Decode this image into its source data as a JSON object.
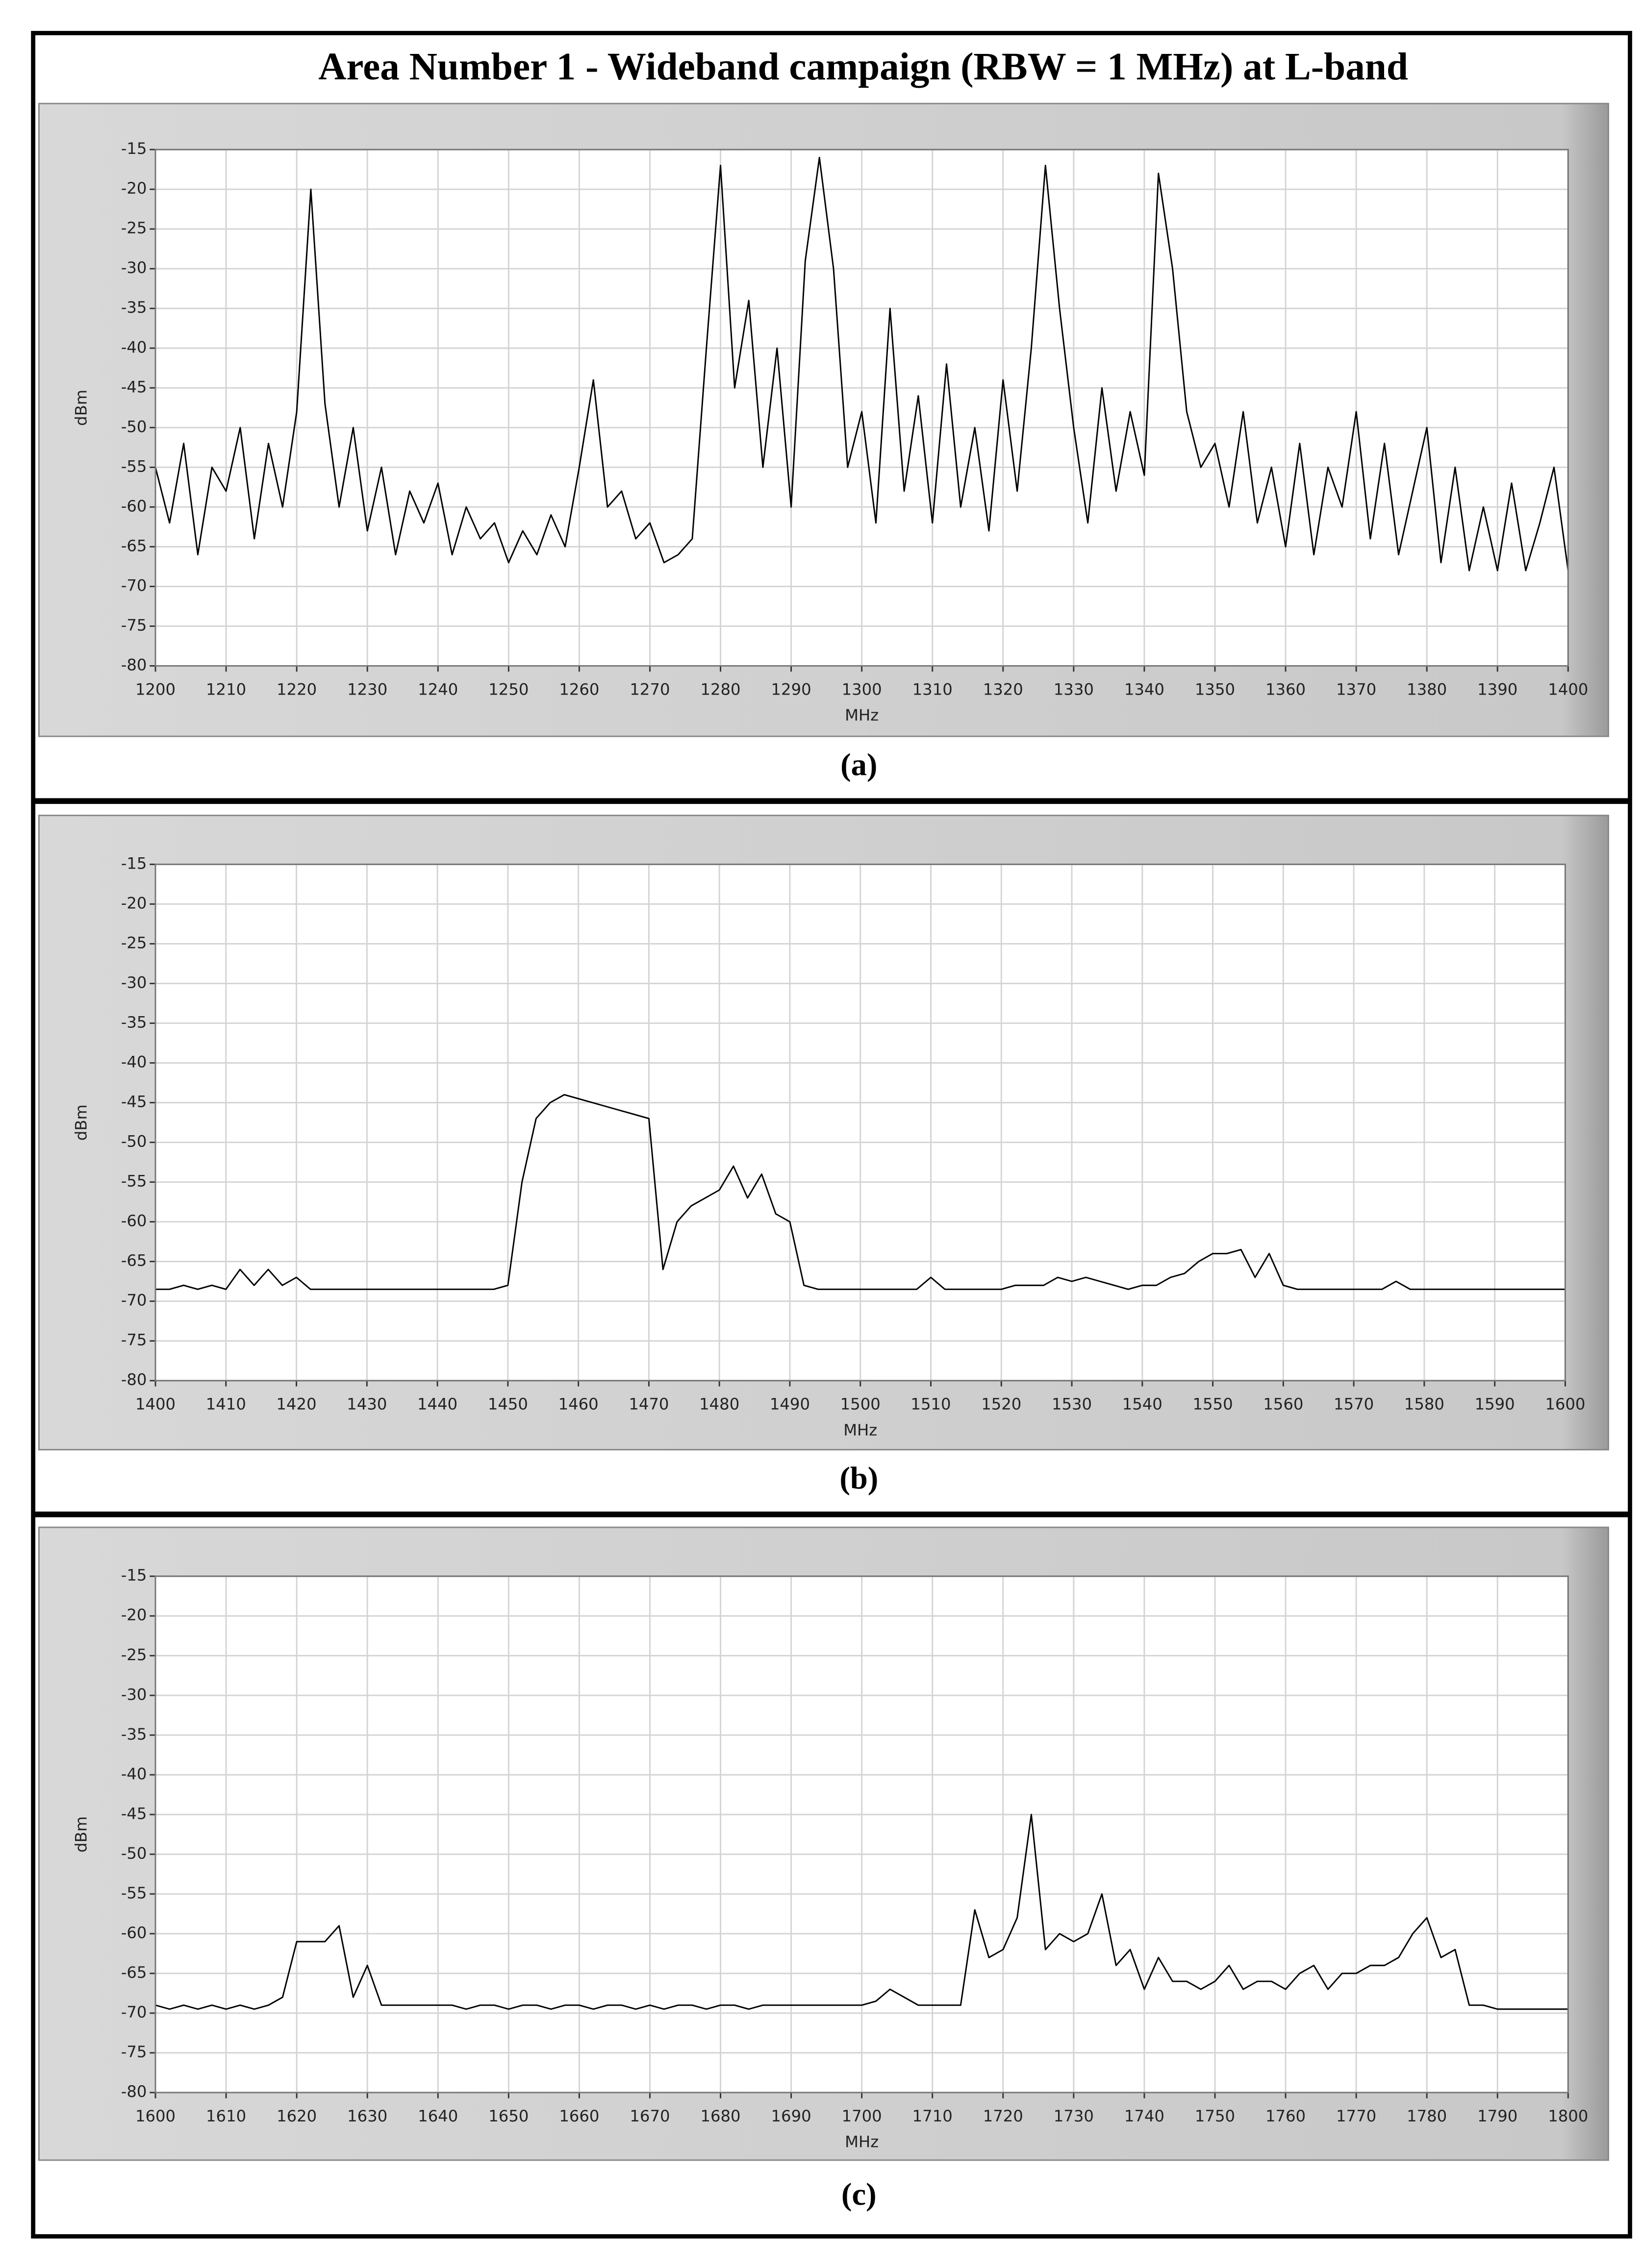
{
  "title": "Area Number 1 - Wideband campaign (RBW = 1 MHz) at  L-band",
  "chart_data": [
    {
      "type": "line",
      "caption": "(a)",
      "xlabel": "MHz",
      "ylabel": "dBm",
      "color": "#000000",
      "grid": true,
      "xlim": [
        1200,
        1400
      ],
      "ylim": [
        -80,
        -15
      ],
      "xticks": [
        1200,
        1210,
        1220,
        1230,
        1240,
        1250,
        1260,
        1270,
        1280,
        1290,
        1300,
        1310,
        1320,
        1330,
        1340,
        1350,
        1360,
        1370,
        1380,
        1390,
        1400
      ],
      "yticks": [
        -15,
        -20,
        -25,
        -30,
        -35,
        -40,
        -45,
        -50,
        -55,
        -60,
        -65,
        -70,
        -75,
        -80
      ],
      "x": [
        1200,
        1202,
        1204,
        1206,
        1208,
        1210,
        1212,
        1214,
        1216,
        1218,
        1220,
        1222,
        1224,
        1226,
        1228,
        1230,
        1232,
        1234,
        1236,
        1238,
        1240,
        1242,
        1244,
        1246,
        1248,
        1250,
        1252,
        1254,
        1256,
        1258,
        1260,
        1262,
        1264,
        1266,
        1268,
        1270,
        1272,
        1274,
        1276,
        1278,
        1280,
        1282,
        1284,
        1286,
        1288,
        1290,
        1292,
        1294,
        1296,
        1298,
        1300,
        1302,
        1304,
        1306,
        1308,
        1310,
        1312,
        1314,
        1316,
        1318,
        1320,
        1322,
        1324,
        1326,
        1328,
        1330,
        1332,
        1334,
        1336,
        1338,
        1340,
        1342,
        1344,
        1346,
        1348,
        1350,
        1352,
        1354,
        1356,
        1358,
        1360,
        1362,
        1364,
        1366,
        1368,
        1370,
        1372,
        1374,
        1376,
        1378,
        1380,
        1382,
        1384,
        1386,
        1388,
        1390,
        1392,
        1394,
        1396,
        1398,
        1400
      ],
      "values": [
        -55,
        -62,
        -52,
        -66,
        -55,
        -58,
        -50,
        -64,
        -52,
        -60,
        -48,
        -20,
        -47,
        -60,
        -50,
        -63,
        -55,
        -66,
        -58,
        -62,
        -57,
        -66,
        -60,
        -64,
        -62,
        -67,
        -63,
        -66,
        -61,
        -65,
        -55,
        -44,
        -60,
        -58,
        -64,
        -62,
        -67,
        -66,
        -64,
        -40,
        -17,
        -45,
        -34,
        -55,
        -40,
        -60,
        -29,
        -16,
        -30,
        -55,
        -48,
        -62,
        -35,
        -58,
        -46,
        -62,
        -42,
        -60,
        -50,
        -63,
        -44,
        -58,
        -40,
        -17,
        -35,
        -50,
        -62,
        -45,
        -58,
        -48,
        -56,
        -18,
        -30,
        -48,
        -55,
        -52,
        -60,
        -48,
        -62,
        -55,
        -65,
        -52,
        -66,
        -55,
        -60,
        -48,
        -64,
        -52,
        -66,
        -58,
        -50,
        -67,
        -55,
        -68,
        -60,
        -68,
        -57,
        -68,
        -62,
        -55,
        -68
      ]
    },
    {
      "type": "line",
      "caption": "(b)",
      "xlabel": "MHz",
      "ylabel": "dBm",
      "color": "#000000",
      "grid": true,
      "xlim": [
        1400,
        1600
      ],
      "ylim": [
        -80,
        -15
      ],
      "xticks": [
        1400,
        1410,
        1420,
        1430,
        1440,
        1450,
        1460,
        1470,
        1480,
        1490,
        1500,
        1510,
        1520,
        1530,
        1540,
        1550,
        1560,
        1570,
        1580,
        1590,
        1600
      ],
      "yticks": [
        -15,
        -20,
        -25,
        -30,
        -35,
        -40,
        -45,
        -50,
        -55,
        -60,
        -65,
        -70,
        -75,
        -80
      ],
      "x": [
        1400,
        1402,
        1404,
        1406,
        1408,
        1410,
        1412,
        1414,
        1416,
        1418,
        1420,
        1422,
        1424,
        1426,
        1428,
        1430,
        1432,
        1434,
        1436,
        1438,
        1440,
        1442,
        1444,
        1446,
        1448,
        1450,
        1452,
        1454,
        1456,
        1458,
        1460,
        1462,
        1464,
        1466,
        1468,
        1470,
        1472,
        1474,
        1476,
        1478,
        1480,
        1482,
        1484,
        1486,
        1488,
        1490,
        1492,
        1494,
        1496,
        1498,
        1500,
        1502,
        1504,
        1506,
        1508,
        1510,
        1512,
        1514,
        1516,
        1518,
        1520,
        1522,
        1524,
        1526,
        1528,
        1530,
        1532,
        1534,
        1536,
        1538,
        1540,
        1542,
        1544,
        1546,
        1548,
        1550,
        1552,
        1554,
        1556,
        1558,
        1560,
        1562,
        1564,
        1566,
        1568,
        1570,
        1572,
        1574,
        1576,
        1578,
        1580,
        1582,
        1584,
        1586,
        1588,
        1590,
        1592,
        1594,
        1596,
        1598,
        1600
      ],
      "values": [
        -68.5,
        -68.5,
        -68,
        -68.5,
        -68,
        -68.5,
        -66,
        -68,
        -66,
        -68,
        -67,
        -68.5,
        -68.5,
        -68.5,
        -68.5,
        -68.5,
        -68.5,
        -68.5,
        -68.5,
        -68.5,
        -68.5,
        -68.5,
        -68.5,
        -68.5,
        -68.5,
        -68,
        -55,
        -47,
        -45,
        -44,
        -44.5,
        -45,
        -45.5,
        -46,
        -46.5,
        -47,
        -66,
        -60,
        -58,
        -57,
        -56,
        -53,
        -57,
        -54,
        -59,
        -60,
        -68,
        -68.5,
        -68.5,
        -68.5,
        -68.5,
        -68.5,
        -68.5,
        -68.5,
        -68.5,
        -67,
        -68.5,
        -68.5,
        -68.5,
        -68.5,
        -68.5,
        -68,
        -68,
        -68,
        -67,
        -67.5,
        -67,
        -67.5,
        -68,
        -68.5,
        -68,
        -68,
        -67,
        -66.5,
        -65,
        -64,
        -64,
        -63.5,
        -67,
        -64,
        -68,
        -68.5,
        -68.5,
        -68.5,
        -68.5,
        -68.5,
        -68.5,
        -68.5,
        -67.5,
        -68.5,
        -68.5,
        -68.5,
        -68.5,
        -68.5,
        -68.5,
        -68.5,
        -68.5,
        -68.5,
        -68.5,
        -68.5,
        -68.5
      ]
    },
    {
      "type": "line",
      "caption": "(c)",
      "xlabel": "MHz",
      "ylabel": "dBm",
      "color": "#000000",
      "grid": true,
      "xlim": [
        1600,
        1800
      ],
      "ylim": [
        -80,
        -15
      ],
      "xticks": [
        1600,
        1610,
        1620,
        1630,
        1640,
        1650,
        1660,
        1670,
        1680,
        1690,
        1700,
        1710,
        1720,
        1730,
        1740,
        1750,
        1760,
        1770,
        1780,
        1790,
        1800
      ],
      "yticks": [
        -15,
        -20,
        -25,
        -30,
        -35,
        -40,
        -45,
        -50,
        -55,
        -60,
        -65,
        -70,
        -75,
        -80
      ],
      "x": [
        1600,
        1602,
        1604,
        1606,
        1608,
        1610,
        1612,
        1614,
        1616,
        1618,
        1620,
        1622,
        1624,
        1626,
        1628,
        1630,
        1632,
        1634,
        1636,
        1638,
        1640,
        1642,
        1644,
        1646,
        1648,
        1650,
        1652,
        1654,
        1656,
        1658,
        1660,
        1662,
        1664,
        1666,
        1668,
        1670,
        1672,
        1674,
        1676,
        1678,
        1680,
        1682,
        1684,
        1686,
        1688,
        1690,
        1692,
        1694,
        1696,
        1698,
        1700,
        1702,
        1704,
        1706,
        1708,
        1710,
        1712,
        1714,
        1716,
        1718,
        1720,
        1722,
        1724,
        1726,
        1728,
        1730,
        1732,
        1734,
        1736,
        1738,
        1740,
        1742,
        1744,
        1746,
        1748,
        1750,
        1752,
        1754,
        1756,
        1758,
        1760,
        1762,
        1764,
        1766,
        1768,
        1770,
        1772,
        1774,
        1776,
        1778,
        1780,
        1782,
        1784,
        1786,
        1788,
        1790,
        1792,
        1794,
        1796,
        1798,
        1800
      ],
      "values": [
        -69,
        -69.5,
        -69,
        -69.5,
        -69,
        -69.5,
        -69,
        -69.5,
        -69,
        -68,
        -61,
        -61,
        -61,
        -59,
        -68,
        -64,
        -69,
        -69,
        -69,
        -69,
        -69,
        -69,
        -69.5,
        -69,
        -69,
        -69.5,
        -69,
        -69,
        -69.5,
        -69,
        -69,
        -69.5,
        -69,
        -69,
        -69.5,
        -69,
        -69.5,
        -69,
        -69,
        -69.5,
        -69,
        -69,
        -69.5,
        -69,
        -69,
        -69,
        -69,
        -69,
        -69,
        -69,
        -69,
        -68.5,
        -67,
        -68,
        -69,
        -69,
        -69,
        -69,
        -57,
        -63,
        -62,
        -58,
        -45,
        -62,
        -60,
        -61,
        -60,
        -55,
        -64,
        -62,
        -67,
        -63,
        -66,
        -66,
        -67,
        -66,
        -64,
        -67,
        -66,
        -66,
        -67,
        -65,
        -64,
        -67,
        -65,
        -65,
        -64,
        -64,
        -63,
        -60,
        -58,
        -63,
        -62,
        -69,
        -69,
        -69.5,
        -69.5,
        -69.5,
        -69.5,
        -69.5,
        -69.5
      ]
    }
  ]
}
